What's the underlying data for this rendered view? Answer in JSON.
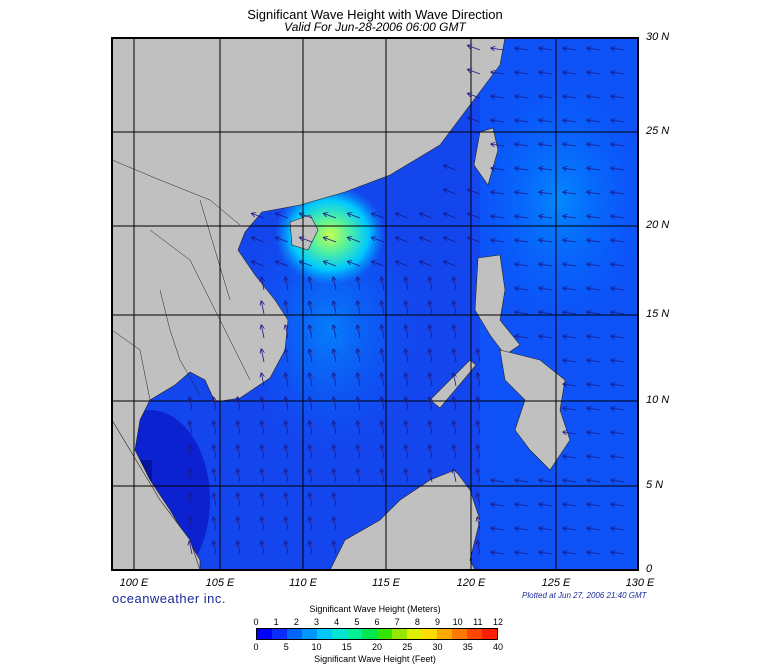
{
  "title": "Significant Wave Height with Wave Direction",
  "subtitle": "Valid For Jun-28-2006 06:00 GMT",
  "latitude_labels": [
    "30 N",
    "25 N",
    "20 N",
    "15 N",
    "10 N",
    "5 N",
    "0"
  ],
  "longitude_labels": [
    "100 E",
    "105 E",
    "110 E",
    "115 E",
    "120 E",
    "125 E",
    "130 E"
  ],
  "brand": "oceanweather inc.",
  "plotted": "Plotted at Jun 27, 2006 21:40 GMT",
  "colorbar": {
    "title_meters": "Significant Wave Height (Meters)",
    "title_feet": "Significant Wave Height (Feet)",
    "meter_ticks": [
      "0",
      "1",
      "2",
      "3",
      "4",
      "5",
      "6",
      "7",
      "8",
      "9",
      "10",
      "11",
      "12"
    ],
    "feet_ticks": [
      "0",
      "5",
      "10",
      "15",
      "20",
      "25",
      "30",
      "35",
      "40"
    ],
    "colors": [
      "#0000ff",
      "#0a2cff",
      "#0064ff",
      "#0096ff",
      "#00c8ff",
      "#00e6d2",
      "#00f096",
      "#00e650",
      "#32e600",
      "#96e600",
      "#dcf000",
      "#ffdc00",
      "#ffaa00",
      "#ff7800",
      "#ff4600",
      "#ff1e00"
    ]
  },
  "map": {
    "extent": {
      "lon_min": 100,
      "lon_max": 130,
      "lat_min": 0,
      "lat_max": 30
    },
    "land_color": "#c0c0c0",
    "ocean_base_color": "#1a4cf0",
    "peak_wave_color": "#b4ff50"
  }
}
